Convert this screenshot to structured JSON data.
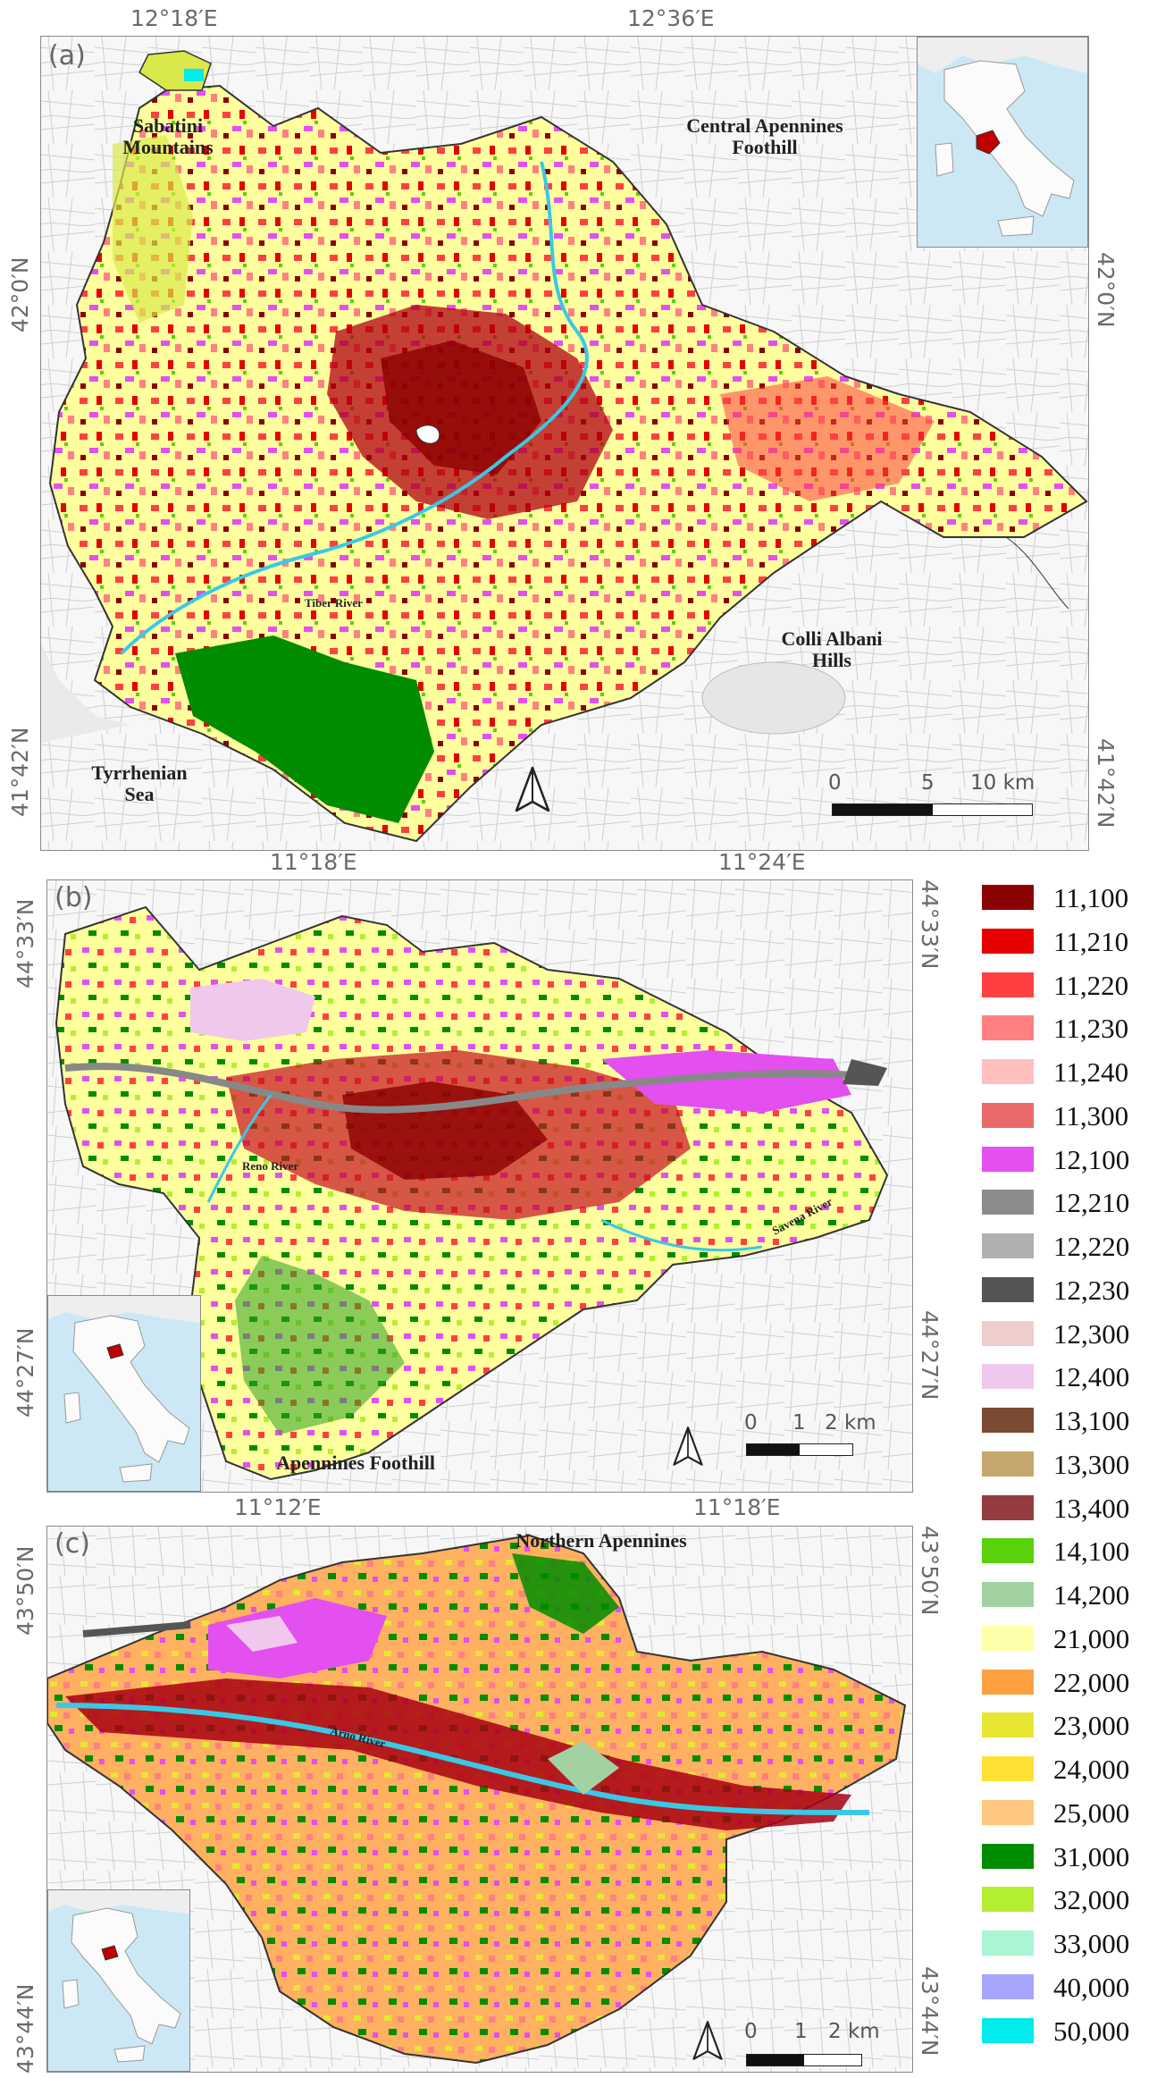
{
  "panels": {
    "a": {
      "label": "(a)",
      "top_ticks": [
        "12°18′E",
        "12°36′E"
      ],
      "left_ticks": [
        "42°0′N",
        "41°42′N"
      ],
      "right_ticks": [
        "42°0′N",
        "41°42′N"
      ],
      "places": {
        "sabatini": "Sabatini Mountains",
        "central_apennines": "Central Apennines Foothill",
        "colli_albani": "Colli Albani Hills",
        "tyrrhenian": "Tyrrhenian Sea",
        "tiber": "Tiber River"
      },
      "scale": {
        "n0": "0",
        "n1": "5",
        "n2": "10 km"
      }
    },
    "b": {
      "label": "(b)",
      "top_ticks": [
        "11°18′E",
        "11°24′E"
      ],
      "left_ticks": [
        "44°33′N",
        "44°27′N"
      ],
      "right_ticks": [
        "44°33′N",
        "44°27′N"
      ],
      "places": {
        "apennines": "Apennines Foothill",
        "reno": "Reno River",
        "savena": "Savena River"
      },
      "scale": {
        "n0": "0",
        "n1": "1",
        "n2": "2 km"
      }
    },
    "c": {
      "label": "(c)",
      "top_ticks": [
        "11°12′E",
        "11°18′E"
      ],
      "left_ticks": [
        "43°50′N",
        "43°44′N"
      ],
      "right_ticks": [
        "43°50′N",
        "43°44′N"
      ],
      "places": {
        "northern_apennines": "Northern Apennines",
        "arno": "Arno River"
      },
      "scale": {
        "n0": "0",
        "n1": "1",
        "n2": "2 km"
      }
    }
  },
  "legend": [
    {
      "code": "11,100",
      "color": "#8b0000"
    },
    {
      "code": "11,210",
      "color": "#e60000"
    },
    {
      "code": "11,220",
      "color": "#ff4040"
    },
    {
      "code": "11,230",
      "color": "#ff8080"
    },
    {
      "code": "11,240",
      "color": "#ffbfbf"
    },
    {
      "code": "11,300",
      "color": "#e86a6a"
    },
    {
      "code": "12,100",
      "color": "#e44ff0"
    },
    {
      "code": "12,210",
      "color": "#8c8c8c"
    },
    {
      "code": "12,220",
      "color": "#b0b0b0"
    },
    {
      "code": "12,230",
      "color": "#555555"
    },
    {
      "code": "12,300",
      "color": "#f0cccc"
    },
    {
      "code": "12,400",
      "color": "#f0c8ec"
    },
    {
      "code": "13,100",
      "color": "#7a4a32"
    },
    {
      "code": "13,300",
      "color": "#c4a86e"
    },
    {
      "code": "13,400",
      "color": "#943c40"
    },
    {
      "code": "14,100",
      "color": "#5ad20a"
    },
    {
      "code": "14,200",
      "color": "#a2d2a2"
    },
    {
      "code": "21,000",
      "color": "#ffffaa"
    },
    {
      "code": "22,000",
      "color": "#ffa040"
    },
    {
      "code": "23,000",
      "color": "#e6e633"
    },
    {
      "code": "24,000",
      "color": "#ffe133"
    },
    {
      "code": "25,000",
      "color": "#ffc880"
    },
    {
      "code": "31,000",
      "color": "#008c00"
    },
    {
      "code": "32,000",
      "color": "#b3ee33"
    },
    {
      "code": "33,000",
      "color": "#aaf5d2"
    },
    {
      "code": "40,000",
      "color": "#a6a6ff"
    },
    {
      "code": "50,000",
      "color": "#00ebeb"
    }
  ]
}
